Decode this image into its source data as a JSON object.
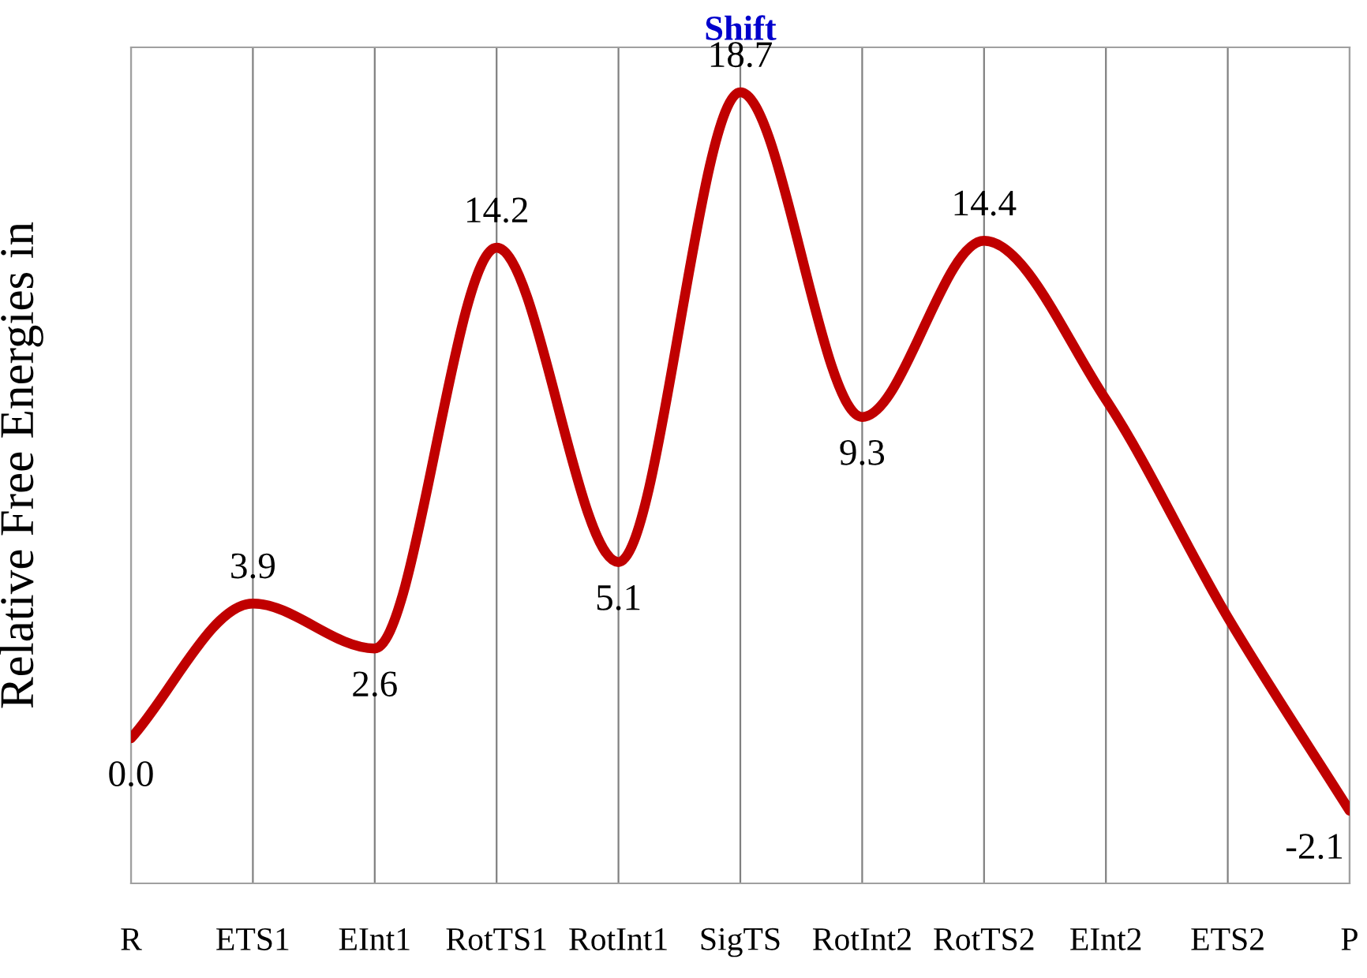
{
  "chart_data": {
    "type": "line",
    "title": "Shift",
    "ylabel": "Relative Free Energies in",
    "categories": [
      "R",
      "ETS1",
      "EInt1",
      "RotTS1",
      "RotInt1",
      "SigTS",
      "RotInt2",
      "RotTS2",
      "EInt2",
      "ETS2",
      "P"
    ],
    "series": [
      {
        "color": "#c00000",
        "values": [
          0.0,
          3.9,
          2.6,
          14.2,
          5.1,
          18.7,
          9.3,
          14.4,
          9.8,
          3.5,
          -2.1
        ],
        "value_labels": [
          "0.0",
          "3.9",
          "2.6",
          "14.2",
          "5.1",
          "18.7",
          "9.3",
          "14.4",
          null,
          null,
          "-2.1"
        ]
      }
    ],
    "ylim": [
      -4.2,
      20
    ],
    "tick_labels": "x",
    "grid": "x",
    "marker": "none",
    "line_style": "solid",
    "legend": false
  }
}
